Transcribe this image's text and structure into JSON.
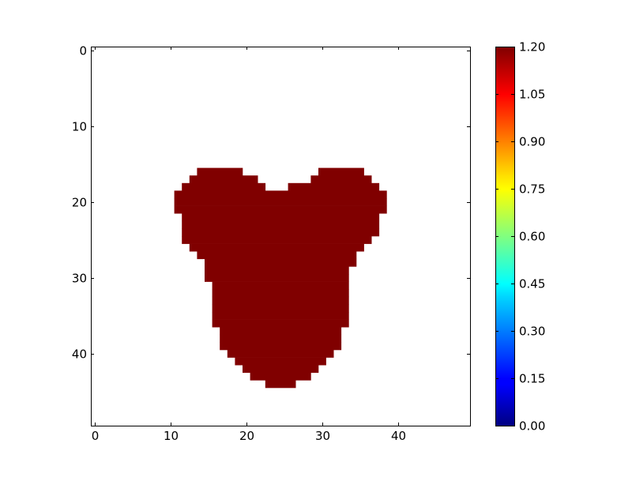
{
  "chart_data": {
    "type": "heatmap",
    "title": "",
    "xlabel": "",
    "ylabel": "",
    "grid": false,
    "shape": [
      50,
      50
    ],
    "xlim": [
      -0.5,
      49.5
    ],
    "ylim": [
      49.5,
      -0.5
    ],
    "x_ticks": [
      0,
      10,
      20,
      30,
      40
    ],
    "y_ticks": [
      0,
      10,
      20,
      30,
      40
    ],
    "x_tick_labels": [
      "0",
      "10",
      "20",
      "30",
      "40"
    ],
    "y_tick_labels": [
      "0",
      "10",
      "20",
      "30",
      "40"
    ],
    "value_inside": 1.2,
    "value_outside": 0.0,
    "outside_rendering": "transparent",
    "fill_color": "#800000",
    "row_spans": [
      {
        "row": 16,
        "spans": [
          [
            14,
            19
          ],
          [
            30,
            35
          ]
        ]
      },
      {
        "row": 17,
        "spans": [
          [
            13,
            21
          ],
          [
            29,
            36
          ]
        ]
      },
      {
        "row": 18,
        "spans": [
          [
            12,
            22
          ],
          [
            26,
            37
          ]
        ]
      },
      {
        "row": 19,
        "spans": [
          [
            11,
            38
          ]
        ]
      },
      {
        "row": 20,
        "spans": [
          [
            11,
            38
          ]
        ]
      },
      {
        "row": 21,
        "spans": [
          [
            11,
            38
          ]
        ]
      },
      {
        "row": 22,
        "spans": [
          [
            12,
            37
          ]
        ]
      },
      {
        "row": 23,
        "spans": [
          [
            12,
            37
          ]
        ]
      },
      {
        "row": 24,
        "spans": [
          [
            12,
            37
          ]
        ]
      },
      {
        "row": 25,
        "spans": [
          [
            12,
            36
          ]
        ]
      },
      {
        "row": 26,
        "spans": [
          [
            13,
            35
          ]
        ]
      },
      {
        "row": 27,
        "spans": [
          [
            14,
            34
          ]
        ]
      },
      {
        "row": 28,
        "spans": [
          [
            15,
            34
          ]
        ]
      },
      {
        "row": 29,
        "spans": [
          [
            15,
            33
          ]
        ]
      },
      {
        "row": 30,
        "spans": [
          [
            15,
            33
          ]
        ]
      },
      {
        "row": 31,
        "spans": [
          [
            16,
            33
          ]
        ]
      },
      {
        "row": 32,
        "spans": [
          [
            16,
            33
          ]
        ]
      },
      {
        "row": 33,
        "spans": [
          [
            16,
            33
          ]
        ]
      },
      {
        "row": 34,
        "spans": [
          [
            16,
            33
          ]
        ]
      },
      {
        "row": 35,
        "spans": [
          [
            16,
            33
          ]
        ]
      },
      {
        "row": 36,
        "spans": [
          [
            16,
            33
          ]
        ]
      },
      {
        "row": 37,
        "spans": [
          [
            17,
            32
          ]
        ]
      },
      {
        "row": 38,
        "spans": [
          [
            17,
            32
          ]
        ]
      },
      {
        "row": 39,
        "spans": [
          [
            17,
            32
          ]
        ]
      },
      {
        "row": 40,
        "spans": [
          [
            18,
            31
          ]
        ]
      },
      {
        "row": 41,
        "spans": [
          [
            19,
            30
          ]
        ]
      },
      {
        "row": 42,
        "spans": [
          [
            20,
            29
          ]
        ]
      },
      {
        "row": 43,
        "spans": [
          [
            21,
            28
          ]
        ]
      },
      {
        "row": 44,
        "spans": [
          [
            23,
            26
          ]
        ]
      }
    ],
    "colorbar": {
      "colormap": "jet",
      "vmin": 0.0,
      "vmax": 1.2,
      "tick_values": [
        0.0,
        0.15,
        0.3,
        0.45,
        0.6,
        0.75,
        0.9,
        1.05,
        1.2
      ],
      "tick_labels": [
        "0.00",
        "0.15",
        "0.30",
        "0.45",
        "0.60",
        "0.75",
        "0.90",
        "1.05",
        "1.20"
      ]
    }
  }
}
